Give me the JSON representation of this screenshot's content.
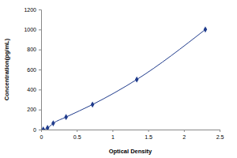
{
  "chart_data": {
    "type": "line",
    "x_label": "Optical Density",
    "y_label": "Concentration(pg/mL)",
    "x": [
      0.03,
      0.09,
      0.17,
      0.35,
      0.72,
      1.34,
      2.3
    ],
    "values": [
      0,
      15.6,
      62.5,
      125,
      250,
      500,
      1000
    ],
    "color": "#1f3b8c",
    "marker": "diamond",
    "line_style": "solid",
    "xlim": [
      0,
      2.5
    ],
    "xticks": [
      0,
      0.5,
      1,
      1.5,
      2,
      2.5
    ],
    "ylim": [
      0,
      1200
    ],
    "yticks": [
      0,
      200,
      400,
      600,
      800,
      1000,
      1200
    ],
    "grid": false
  }
}
